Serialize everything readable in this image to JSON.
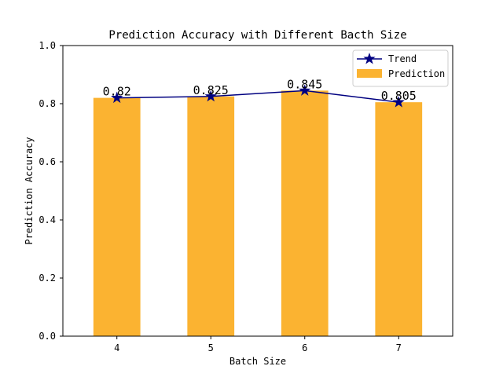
{
  "chart_data": {
    "type": "bar",
    "title": "Prediction Accuracy with Different Bacth Size",
    "xlabel": "Batch Size",
    "ylabel": "Prediction Accuracy",
    "categories": [
      "4",
      "5",
      "6",
      "7"
    ],
    "ylim": [
      0,
      1.0
    ],
    "yticks": [
      "0.0",
      "0.2",
      "0.4",
      "0.6",
      "0.8",
      "1.0"
    ],
    "grid": false,
    "legend_position": "top-right",
    "series": [
      {
        "name": "Prediction",
        "kind": "bar",
        "values": [
          0.82,
          0.825,
          0.845,
          0.805
        ],
        "color": "#FBB331"
      },
      {
        "name": "Trend",
        "kind": "line",
        "marker": "star",
        "values": [
          0.82,
          0.825,
          0.845,
          0.805
        ],
        "color": "#000080"
      }
    ],
    "data_labels": [
      "0.82",
      "0.825",
      "0.845",
      "0.805"
    ]
  }
}
